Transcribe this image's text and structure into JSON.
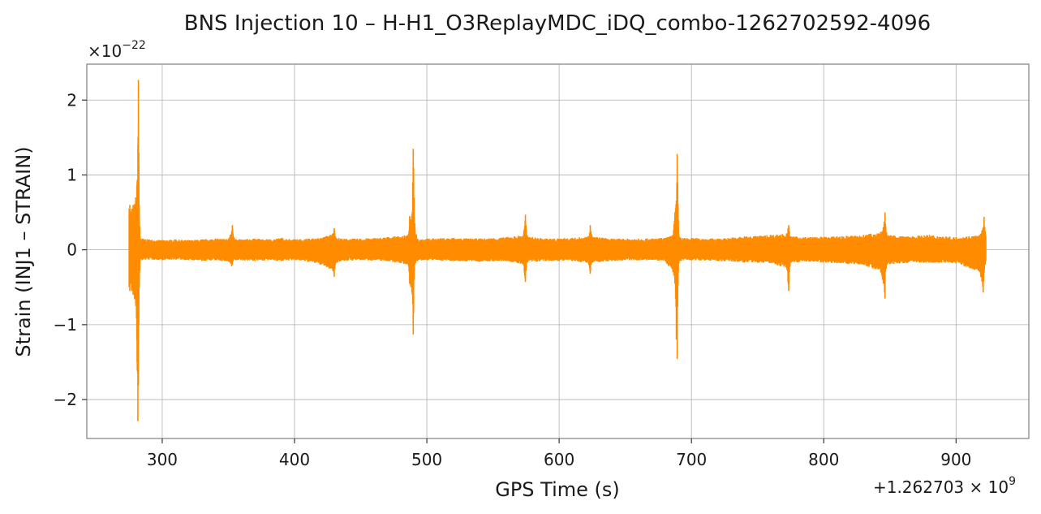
{
  "chart_data": {
    "type": "line",
    "title": "BNS Injection 10 – H-H1_O3ReplayMDC_iDQ_combo-1262702592-4096",
    "xlabel": "GPS Time (s)",
    "ylabel": "Strain (INJ1 – STRAIN)",
    "x_offset_label": "+1.262703 × 10",
    "x_offset_exponent": "9",
    "y_multiplier_label": "×10",
    "y_multiplier_exponent": "−22",
    "xlim": [
      243,
      955
    ],
    "ylim": [
      -2.52,
      2.48
    ],
    "x_ticks": [
      300,
      400,
      500,
      600,
      700,
      800,
      900
    ],
    "x_tick_labels": [
      "300",
      "400",
      "500",
      "600",
      "700",
      "800",
      "900"
    ],
    "y_ticks": [
      -2,
      -1,
      0,
      1,
      2
    ],
    "y_tick_labels": [
      "−2",
      "−1",
      "0",
      "1",
      "2"
    ],
    "grid": true,
    "color": "#ff8c00",
    "series": [
      {
        "x": [
          275.0,
          275.5,
          276,
          277,
          278,
          279,
          280,
          281,
          281.6,
          282.0,
          282.3,
          282.6,
          283.2,
          285,
          290,
          300,
          310,
          320,
          330,
          340,
          350,
          352.5,
          353,
          353.5,
          356,
          370,
          380,
          390,
          400,
          410,
          420,
          429,
          430,
          431,
          435,
          450,
          470,
          486,
          487,
          488,
          489,
          489.7,
          490.0,
          490.4,
          491,
          493,
          500,
          520,
          540,
          560,
          573,
          574.5,
          575,
          576,
          590,
          610,
          622,
          623.5,
          624,
          625,
          640,
          660,
          680,
          686,
          687.5,
          688.6,
          689.2,
          689.6,
          690.1,
          690.5,
          692,
          700,
          720,
          740,
          760,
          772,
          773.5,
          774,
          775,
          790,
          810,
          830,
          843,
          845,
          846.3,
          846.6,
          848,
          860,
          880,
          900,
          918,
          920.5,
          921.2,
          922,
          922.5
        ],
        "upper": [
          0.55,
          0.6,
          0.5,
          0.55,
          0.6,
          0.6,
          0.7,
          0.9,
          1.4,
          2.27,
          1.3,
          0.6,
          0.18,
          0.15,
          0.14,
          0.13,
          0.14,
          0.13,
          0.14,
          0.15,
          0.15,
          0.25,
          0.33,
          0.22,
          0.14,
          0.15,
          0.14,
          0.16,
          0.14,
          0.15,
          0.16,
          0.22,
          0.29,
          0.18,
          0.15,
          0.15,
          0.17,
          0.2,
          0.45,
          0.4,
          0.5,
          1.35,
          1.1,
          0.7,
          0.3,
          0.15,
          0.15,
          0.16,
          0.15,
          0.17,
          0.2,
          0.47,
          0.3,
          0.18,
          0.15,
          0.16,
          0.18,
          0.33,
          0.25,
          0.18,
          0.15,
          0.15,
          0.16,
          0.2,
          0.5,
          0.65,
          1.28,
          0.9,
          0.4,
          0.2,
          0.16,
          0.16,
          0.15,
          0.18,
          0.2,
          0.22,
          0.33,
          0.24,
          0.18,
          0.17,
          0.18,
          0.2,
          0.24,
          0.3,
          0.5,
          0.35,
          0.2,
          0.18,
          0.2,
          0.17,
          0.2,
          0.3,
          0.44,
          0.25,
          0.18
        ],
        "lower": [
          -0.5,
          -0.55,
          -0.45,
          -0.55,
          -0.6,
          -0.65,
          -0.75,
          -1.5,
          -2.29,
          -1.8,
          -1.0,
          -0.5,
          -0.15,
          -0.14,
          -0.13,
          -0.14,
          -0.13,
          -0.14,
          -0.15,
          -0.14,
          -0.16,
          -0.22,
          -0.2,
          -0.15,
          -0.14,
          -0.15,
          -0.14,
          -0.15,
          -0.14,
          -0.16,
          -0.2,
          -0.28,
          -0.36,
          -0.18,
          -0.15,
          -0.14,
          -0.15,
          -0.2,
          -0.45,
          -0.5,
          -0.6,
          -1.13,
          -0.8,
          -0.4,
          -0.2,
          -0.15,
          -0.14,
          -0.15,
          -0.16,
          -0.15,
          -0.2,
          -0.43,
          -0.28,
          -0.17,
          -0.15,
          -0.15,
          -0.18,
          -0.32,
          -0.2,
          -0.17,
          -0.15,
          -0.14,
          -0.15,
          -0.3,
          -0.45,
          -1.2,
          -1.46,
          -0.7,
          -0.3,
          -0.18,
          -0.15,
          -0.14,
          -0.15,
          -0.17,
          -0.18,
          -0.25,
          -0.55,
          -0.3,
          -0.17,
          -0.16,
          -0.18,
          -0.2,
          -0.3,
          -0.45,
          -0.65,
          -0.3,
          -0.2,
          -0.18,
          -0.17,
          -0.18,
          -0.3,
          -0.57,
          -0.3,
          -0.2,
          -0.15
        ]
      }
    ]
  }
}
